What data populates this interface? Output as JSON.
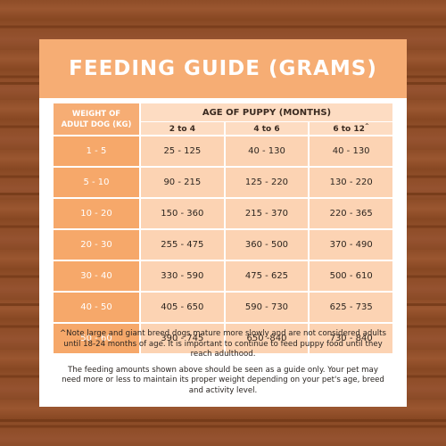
{
  "title": "FEEDING GUIDE (GRAMS)",
  "table": {
    "weight_header_line1": "WEIGHT OF",
    "weight_header_line2": "ADULT DOG (KG)",
    "age_header": "AGE OF PUPPY (MONTHS)",
    "age_columns": [
      "2 to 4",
      "4 to 6",
      "6 to 12"
    ],
    "age_column_marks": [
      "",
      "",
      "^"
    ],
    "rows": [
      {
        "weight": "1 - 5",
        "values": [
          "25 - 125",
          "40 - 130",
          "40 - 130"
        ]
      },
      {
        "weight": "5 - 10",
        "values": [
          "90 - 215",
          "125 - 220",
          "130 - 220"
        ]
      },
      {
        "weight": "10 - 20",
        "values": [
          "150 - 360",
          "215 - 370",
          "220 - 365"
        ]
      },
      {
        "weight": "20 - 30",
        "values": [
          "255 - 475",
          "360 - 500",
          "370 - 490"
        ]
      },
      {
        "weight": "30 - 40",
        "values": [
          "330 - 590",
          "475 - 625",
          "500 - 610"
        ]
      },
      {
        "weight": "40 - 50",
        "values": [
          "405 - 650",
          "590 - 730",
          "625 - 735"
        ]
      },
      {
        "weight": "50 - 60",
        "values": [
          "390 - 745",
          "650 -840",
          "730 - 840"
        ]
      }
    ]
  },
  "notes": {
    "note1": "^Note large and giant breed dogs mature more slowly and are not considered adults until 18-24 months of age. It is important to continue to feed puppy food until they reach adulthood.",
    "note2": "The feeding amounts shown above should be seen as a guide only. Your pet may need more or less to maintain its proper weight depending on your pet's age, breed and activity level."
  },
  "colors": {
    "banner": "#f6ad74",
    "weight_cells": "#f6a86a",
    "value_cells": "#fcd3b3",
    "header_cells": "#fddcc2",
    "wood": "#8a4a26"
  }
}
